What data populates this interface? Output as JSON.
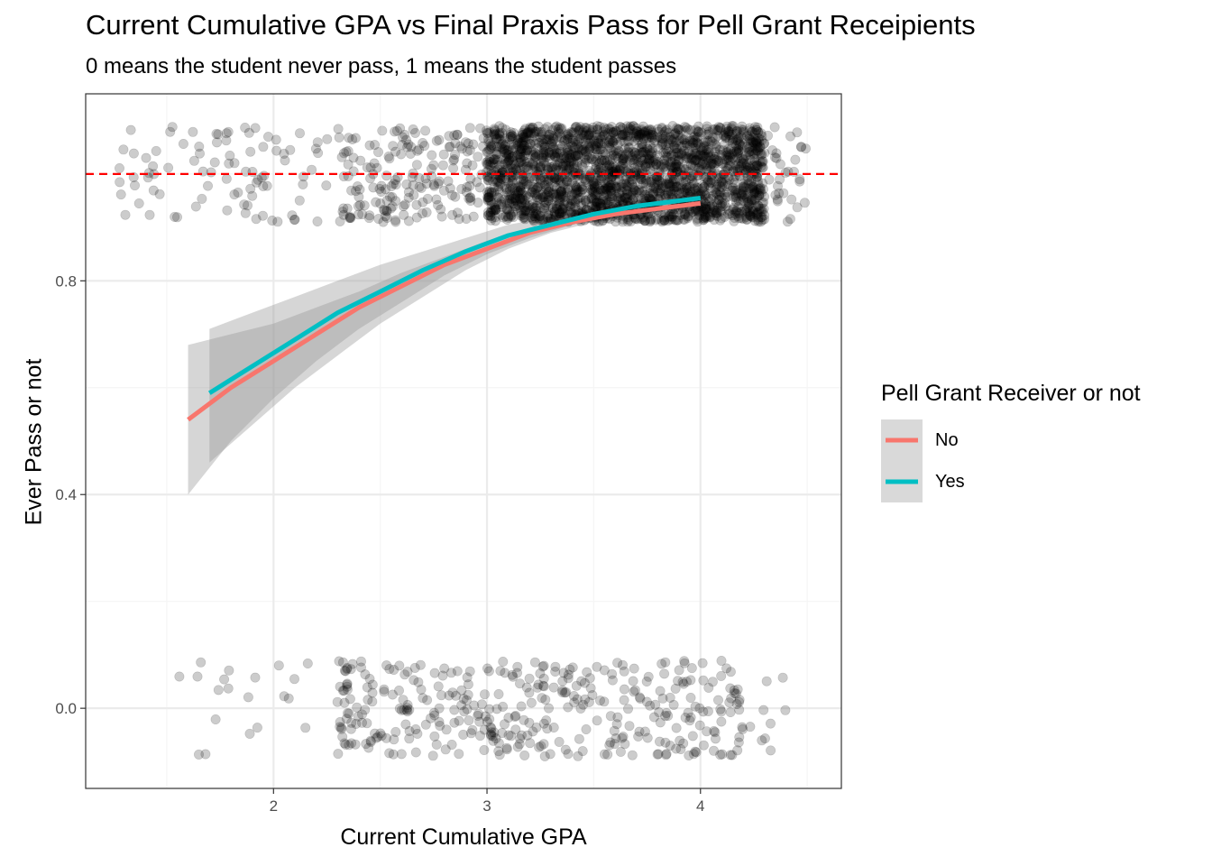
{
  "chart_data": {
    "type": "scatter",
    "title": "Current Cumulative GPA vs Final Praxis Pass for Pell Grant Receipients",
    "subtitle": "0 means the student never pass, 1 means the student passes",
    "xlabel": "Current Cumulative GPA",
    "ylabel": "Ever Pass or not",
    "xlim": [
      1.12,
      4.66
    ],
    "ylim": [
      -0.15,
      1.15
    ],
    "x_ticks": [
      2,
      3,
      4
    ],
    "y_ticks": [
      0.0,
      0.4,
      0.8
    ],
    "y_tick_labels": [
      "0.0",
      "0.4",
      "0.8"
    ],
    "x_minor_ticks": [
      1.5,
      2.5,
      3.5,
      4.5
    ],
    "y_minor_ticks": [
      0.2,
      0.6,
      1.0
    ],
    "grid": true,
    "reference_line": {
      "y": 1.0,
      "style": "dashed",
      "color": "#ff0000"
    },
    "points": {
      "color": "#000000",
      "opacity": 0.2,
      "jitter_height": 0.09,
      "groups": [
        {
          "y": 1,
          "approx_count": 2600,
          "x_range": [
            1.25,
            4.5
          ],
          "dense_range": [
            3.0,
            4.3
          ]
        },
        {
          "y": 0,
          "approx_count": 420,
          "x_range": [
            1.55,
            4.4
          ],
          "dense_range": [
            2.3,
            4.2
          ]
        }
      ]
    },
    "series": [
      {
        "name": "No",
        "color": "#f8766d",
        "x": [
          1.6,
          1.8,
          2.0,
          2.2,
          2.4,
          2.6,
          2.8,
          3.0,
          3.2,
          3.4,
          3.6,
          3.8,
          4.0
        ],
        "y": [
          0.54,
          0.6,
          0.65,
          0.7,
          0.75,
          0.79,
          0.83,
          0.86,
          0.89,
          0.91,
          0.925,
          0.935,
          0.945
        ],
        "lower": [
          0.4,
          0.5,
          0.58,
          0.65,
          0.71,
          0.76,
          0.81,
          0.85,
          0.88,
          0.905,
          0.92,
          0.93,
          0.94
        ],
        "upper": [
          0.68,
          0.7,
          0.72,
          0.75,
          0.78,
          0.815,
          0.845,
          0.875,
          0.9,
          0.915,
          0.93,
          0.94,
          0.95
        ]
      },
      {
        "name": "Yes",
        "color": "#00bfc4",
        "x": [
          1.7,
          1.9,
          2.1,
          2.3,
          2.5,
          2.7,
          2.9,
          3.1,
          3.3,
          3.5,
          3.7,
          4.0
        ],
        "y": [
          0.59,
          0.64,
          0.69,
          0.74,
          0.78,
          0.82,
          0.855,
          0.885,
          0.905,
          0.925,
          0.94,
          0.955
        ],
        "lower": [
          0.46,
          0.53,
          0.6,
          0.66,
          0.72,
          0.77,
          0.82,
          0.86,
          0.89,
          0.91,
          0.925,
          0.945
        ],
        "upper": [
          0.71,
          0.74,
          0.77,
          0.8,
          0.83,
          0.855,
          0.88,
          0.905,
          0.92,
          0.935,
          0.95,
          0.965
        ]
      }
    ],
    "legend": {
      "title": "Pell Grant Receiver or not",
      "position": "right",
      "entries": [
        {
          "label": "No",
          "color": "#f8766d"
        },
        {
          "label": "Yes",
          "color": "#00bfc4"
        }
      ]
    },
    "colors": {
      "panel_border": "#333333",
      "grid_major": "#ebebeb",
      "grid_minor": "#f5f5f5",
      "ribbon": "#999999",
      "legend_key_bg": "#d9d9d9"
    }
  }
}
